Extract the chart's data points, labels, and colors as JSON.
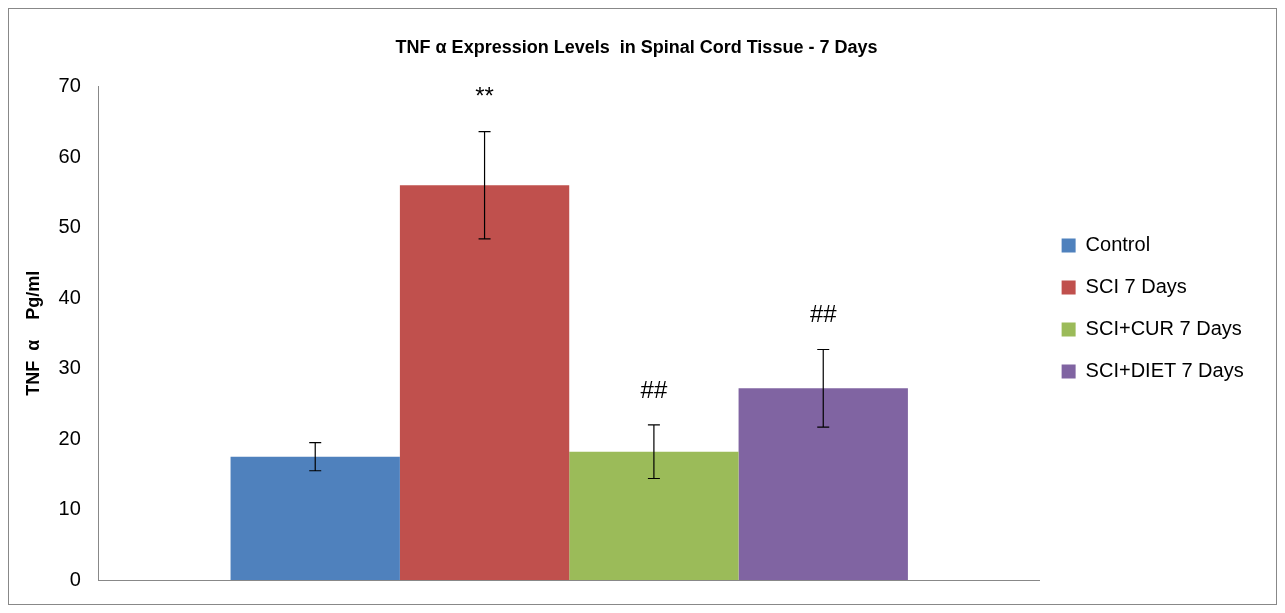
{
  "chart_data": {
    "type": "bar",
    "title": "TNF α Expression Levels  in Spinal Cord Tissue - 7 Days",
    "ylabel": "TNF  α    Pg/ml",
    "categories": [
      null
    ],
    "series": [
      {
        "name": "Control",
        "color": "#4f81bd",
        "values": [
          17.5
        ],
        "errors": [
          2.0
        ]
      },
      {
        "name": "SCI 7 Days",
        "color": "#c0504d",
        "values": [
          56.0
        ],
        "errors": [
          7.6
        ]
      },
      {
        "name": "SCI+CUR 7 Days",
        "color": "#9bbb59",
        "values": [
          18.2
        ],
        "errors": [
          3.8
        ]
      },
      {
        "name": "SCI+DIET 7 Days",
        "color": "#8064a2",
        "values": [
          27.2
        ],
        "errors": [
          5.5
        ]
      }
    ],
    "ylim": [
      0,
      70
    ],
    "yticks": [
      0,
      10,
      20,
      30,
      40,
      50,
      60,
      70
    ],
    "grid": false,
    "legend": "right",
    "annotations": [
      "**",
      "##",
      "##"
    ]
  }
}
